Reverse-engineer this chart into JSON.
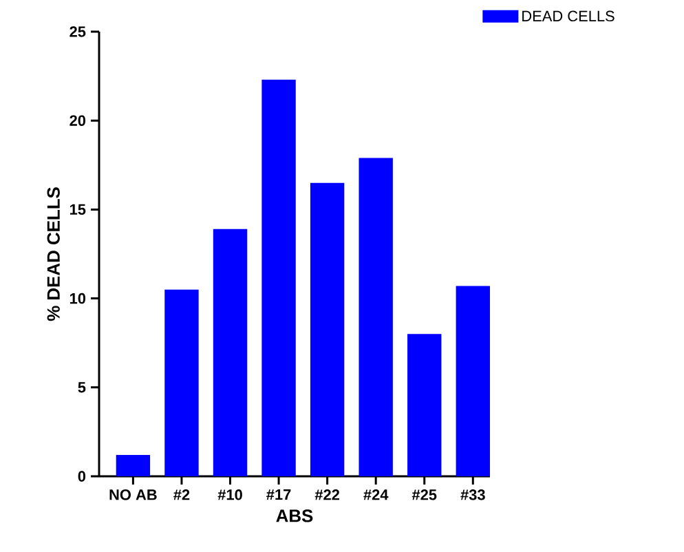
{
  "chart_data": {
    "type": "bar",
    "xlabel": "ABS",
    "ylabel": "% DEAD CELLS",
    "categories": [
      "NO AB",
      "#2",
      "#10",
      "#17",
      "#22",
      "#24",
      "#25",
      "#33"
    ],
    "series": [
      {
        "name": "DEAD CELLS",
        "color": "#0000ff",
        "values": [
          1.2,
          10.5,
          13.9,
          22.3,
          16.5,
          17.9,
          8.0,
          10.7
        ]
      }
    ],
    "ylim": [
      0,
      25
    ],
    "yticks": [
      0,
      5,
      10,
      15,
      20,
      25
    ],
    "grid": false,
    "legend": "top right"
  }
}
